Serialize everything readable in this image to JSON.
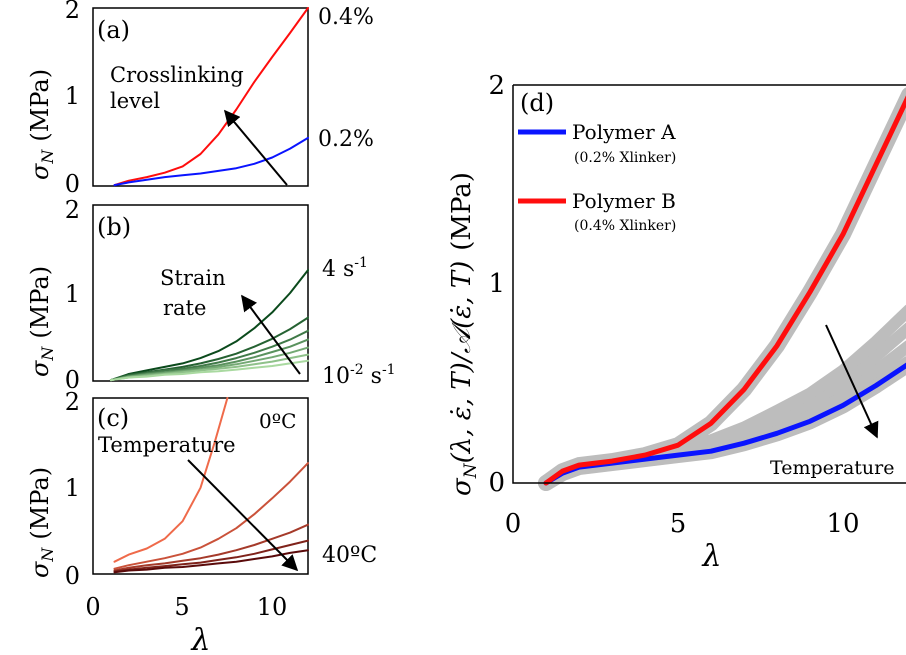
{
  "colors": {
    "polymer_a": "#0a14ff",
    "polymer_b": "#ff0d0d",
    "gray_band": "#bdbdbd",
    "strain_dark": "#0b4a1c",
    "strain_light": "#a9d9a0",
    "temp_light": "#ef6a4a",
    "temp_dark": "#5a0a0a"
  },
  "axis_labels": {
    "sigma_n": "σ",
    "sigma_n_sub": "N",
    "mpa": "(MPa)",
    "lambda": "λ",
    "d_ylabel_main": "σ",
    "d_ylabel_sub": "N",
    "d_ylabel_rest": "(λ, ε̇, T)/𝒜(ε̇, T)",
    "d_ylabel_unit": "(MPa)"
  },
  "panels": {
    "a": {
      "tag": "(a)",
      "annotation_line1": "Crosslinking",
      "annotation_line2": "level",
      "label_top": "0.4%",
      "label_bottom": "0.2%"
    },
    "b": {
      "tag": "(b)",
      "annotation_line1": "Strain",
      "annotation_line2": "rate",
      "label_top_base": "4 s",
      "label_top_sup": "-1",
      "label_bottom_base": "10",
      "label_bottom_sup1": "-2",
      "label_bottom_mid": " s",
      "label_bottom_sup2": "-1"
    },
    "c": {
      "tag": "(c)",
      "annotation": "Temperature",
      "label_top": "0ºC",
      "label_bottom": "40ºC"
    },
    "d": {
      "tag": "(d)",
      "annotation": "Temperature",
      "legend": [
        {
          "name": "Polymer A",
          "note": "(0.2% Xlinker)"
        },
        {
          "name": "Polymer B",
          "note": "(0.4% Xlinker)"
        }
      ]
    }
  },
  "ticks": {
    "small_y": [
      "0",
      "1",
      "2"
    ],
    "small_x": [
      "0",
      "5",
      "10"
    ],
    "d_y": [
      "0",
      "1",
      "2"
    ],
    "d_x": [
      "0",
      "5",
      "10"
    ]
  },
  "chart_data": [
    {
      "panel": "a",
      "type": "line",
      "xlabel": "λ",
      "ylabel": "σN (MPa)",
      "xlim": [
        0,
        12
      ],
      "ylim": [
        0,
        2
      ],
      "series": [
        {
          "name": "0.4%",
          "x": [
            1.2,
            2,
            3,
            4,
            5,
            6,
            7,
            8,
            9,
            10,
            11,
            12
          ],
          "values": [
            0.01,
            0.06,
            0.1,
            0.15,
            0.22,
            0.36,
            0.58,
            0.86,
            1.17,
            1.45,
            1.72,
            2.0
          ]
        },
        {
          "name": "0.2%",
          "x": [
            1.2,
            2,
            3,
            4,
            5,
            6,
            7,
            8,
            9,
            10,
            11,
            12
          ],
          "values": [
            0.01,
            0.04,
            0.07,
            0.1,
            0.12,
            0.14,
            0.17,
            0.2,
            0.25,
            0.32,
            0.42,
            0.54
          ]
        }
      ]
    },
    {
      "panel": "b",
      "type": "line",
      "xlabel": "λ",
      "ylabel": "σN (MPa)",
      "xlim": [
        0,
        12
      ],
      "ylim": [
        0,
        2
      ],
      "series": [
        {
          "name": "4 s-1",
          "x": [
            1,
            2,
            3,
            4,
            5,
            6,
            7,
            8,
            9,
            10,
            11,
            12
          ],
          "values": [
            0.01,
            0.08,
            0.12,
            0.16,
            0.2,
            0.26,
            0.34,
            0.45,
            0.6,
            0.78,
            1.0,
            1.26
          ]
        },
        {
          "x": [
            1,
            2,
            3,
            4,
            5,
            6,
            7,
            8,
            9,
            10,
            11,
            12
          ],
          "values": [
            0.01,
            0.07,
            0.1,
            0.13,
            0.16,
            0.2,
            0.25,
            0.31,
            0.39,
            0.48,
            0.59,
            0.72
          ]
        },
        {
          "x": [
            1,
            2,
            3,
            4,
            5,
            6,
            7,
            8,
            9,
            10,
            11,
            12
          ],
          "values": [
            0.01,
            0.06,
            0.09,
            0.12,
            0.14,
            0.17,
            0.21,
            0.26,
            0.32,
            0.39,
            0.47,
            0.57
          ]
        },
        {
          "x": [
            1,
            2,
            3,
            4,
            5,
            6,
            7,
            8,
            9,
            10,
            11,
            12
          ],
          "values": [
            0.01,
            0.05,
            0.08,
            0.1,
            0.12,
            0.15,
            0.18,
            0.22,
            0.27,
            0.33,
            0.39,
            0.47
          ]
        },
        {
          "x": [
            1,
            2,
            3,
            4,
            5,
            6,
            7,
            8,
            9,
            10,
            11,
            12
          ],
          "values": [
            0.01,
            0.05,
            0.07,
            0.09,
            0.11,
            0.13,
            0.16,
            0.19,
            0.23,
            0.27,
            0.32,
            0.38
          ]
        },
        {
          "x": [
            1,
            2,
            3,
            4,
            5,
            6,
            7,
            8,
            9,
            10,
            11,
            12
          ],
          "values": [
            0.01,
            0.04,
            0.06,
            0.08,
            0.1,
            0.12,
            0.14,
            0.16,
            0.19,
            0.22,
            0.26,
            0.3
          ]
        },
        {
          "name": "10-2 s-1",
          "x": [
            1,
            2,
            3,
            4,
            5,
            6,
            7,
            8,
            9,
            10,
            11,
            12
          ],
          "values": [
            0.01,
            0.04,
            0.05,
            0.07,
            0.08,
            0.1,
            0.11,
            0.13,
            0.15,
            0.17,
            0.2,
            0.23
          ]
        }
      ]
    },
    {
      "panel": "c",
      "type": "line",
      "xlabel": "λ",
      "ylabel": "σN (MPa)",
      "xlim": [
        0,
        12
      ],
      "ylim": [
        0,
        2
      ],
      "series": [
        {
          "name": "0ºC",
          "x": [
            1.2,
            2,
            3,
            4,
            5,
            6,
            6.8,
            7.5
          ],
          "values": [
            0.14,
            0.22,
            0.29,
            0.4,
            0.6,
            0.98,
            1.5,
            2.0
          ]
        },
        {
          "x": [
            1.2,
            2,
            3,
            4,
            5,
            6,
            7,
            8,
            9,
            10,
            11,
            12
          ],
          "values": [
            0.06,
            0.1,
            0.14,
            0.18,
            0.23,
            0.3,
            0.4,
            0.52,
            0.68,
            0.86,
            1.05,
            1.26
          ]
        },
        {
          "x": [
            1.2,
            2,
            3,
            4,
            5,
            6,
            7,
            8,
            9,
            10,
            11,
            12
          ],
          "values": [
            0.04,
            0.07,
            0.1,
            0.12,
            0.15,
            0.18,
            0.22,
            0.27,
            0.33,
            0.4,
            0.47,
            0.56
          ]
        },
        {
          "x": [
            1.2,
            2,
            3,
            4,
            5,
            6,
            7,
            8,
            9,
            10,
            11,
            12
          ],
          "values": [
            0.03,
            0.05,
            0.07,
            0.09,
            0.11,
            0.13,
            0.16,
            0.19,
            0.23,
            0.28,
            0.33,
            0.38
          ]
        },
        {
          "name": "40ºC",
          "x": [
            1.2,
            2,
            3,
            4,
            5,
            6,
            7,
            8,
            9,
            10,
            11,
            12
          ],
          "values": [
            0.02,
            0.04,
            0.05,
            0.07,
            0.08,
            0.1,
            0.12,
            0.14,
            0.17,
            0.2,
            0.24,
            0.27
          ]
        }
      ]
    },
    {
      "panel": "d",
      "type": "line",
      "xlabel": "λ",
      "ylabel": "σN(λ, ε̇, T)/𝒜(ε̇, T) (MPa)",
      "xlim": [
        0,
        12
      ],
      "ylim": [
        0,
        2
      ],
      "series": [
        {
          "name": "Polymer A",
          "x": [
            1,
            1.5,
            2,
            3,
            4,
            5,
            6,
            7,
            8,
            9,
            10,
            11,
            12
          ],
          "values": [
            0.0,
            0.05,
            0.08,
            0.1,
            0.12,
            0.14,
            0.16,
            0.2,
            0.25,
            0.31,
            0.39,
            0.49,
            0.6
          ]
        },
        {
          "name": "Polymer B",
          "x": [
            1,
            1.5,
            2,
            3,
            4,
            5,
            6,
            7,
            8,
            9,
            10,
            11,
            12
          ],
          "values": [
            0.0,
            0.06,
            0.09,
            0.11,
            0.14,
            0.19,
            0.3,
            0.47,
            0.69,
            0.96,
            1.25,
            1.6,
            1.95
          ]
        }
      ]
    }
  ]
}
